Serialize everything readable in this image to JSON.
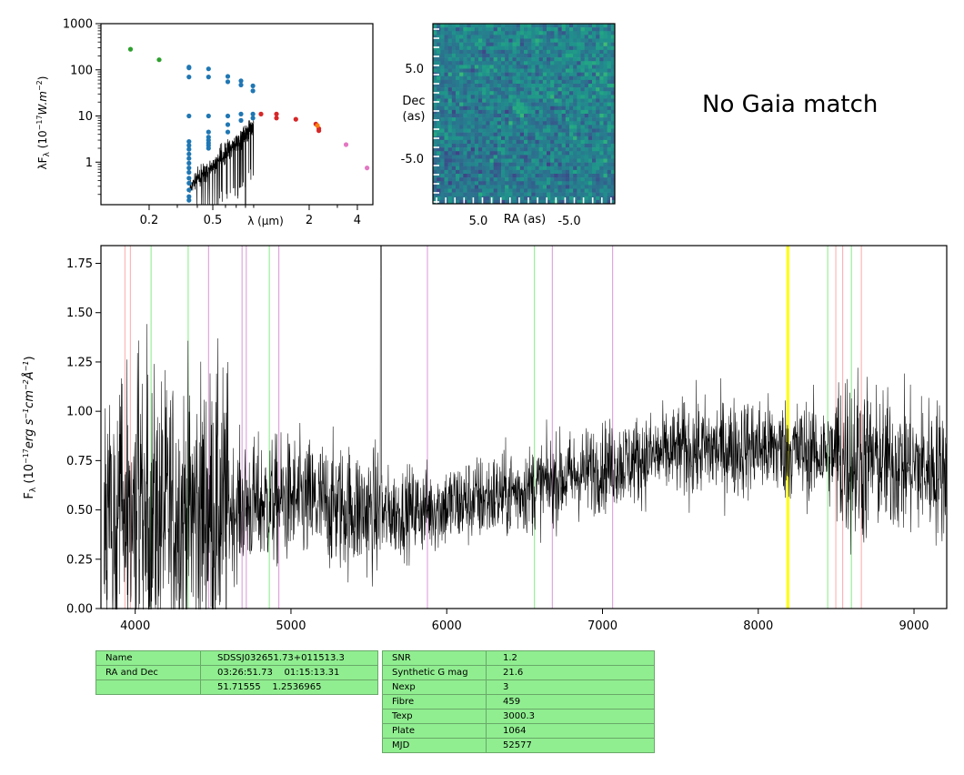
{
  "chart_data": [
    {
      "type": "scatter",
      "xlabel": "λ (μm)",
      "ylabel": "λF_λ (10^-17 W.m^-2)",
      "xscale": "log",
      "yscale": "log",
      "xlim": [
        0.1,
        5.0
      ],
      "ylim": [
        0.12,
        1000
      ],
      "x_ticks": [
        {
          "v": 0.2,
          "label": "0.2"
        },
        {
          "v": 0.5,
          "label": "0.5"
        },
        {
          "v": 2,
          "label": "2"
        },
        {
          "v": 4,
          "label": "4"
        }
      ],
      "y_ticks": [
        {
          "v": 1,
          "label": "1"
        },
        {
          "v": 10,
          "label": "10"
        },
        {
          "v": 100,
          "label": "100"
        },
        {
          "v": 1000,
          "label": "1000"
        }
      ],
      "series": [
        {
          "color": "#2ca02c",
          "points": [
            [
              0.153,
              280
            ],
            [
              0.231,
              165
            ]
          ]
        },
        {
          "color": "#1f77b4",
          "points": [
            [
              0.355,
              115
            ],
            [
              0.355,
              110
            ],
            [
              0.355,
              70
            ],
            [
              0.355,
              10
            ],
            [
              0.355,
              2.8
            ],
            [
              0.355,
              2.3
            ],
            [
              0.355,
              1.9
            ],
            [
              0.355,
              1.5
            ],
            [
              0.355,
              1.2
            ],
            [
              0.355,
              0.95
            ],
            [
              0.355,
              0.75
            ],
            [
              0.355,
              0.6
            ],
            [
              0.355,
              0.45
            ],
            [
              0.355,
              0.35
            ],
            [
              0.355,
              0.25
            ],
            [
              0.355,
              0.18
            ],
            [
              0.355,
              0.15
            ],
            [
              0.47,
              105
            ],
            [
              0.47,
              70
            ],
            [
              0.47,
              10
            ],
            [
              0.47,
              4.5
            ],
            [
              0.47,
              3.5
            ],
            [
              0.47,
              3.0
            ],
            [
              0.47,
              2.6
            ],
            [
              0.47,
              2.3
            ],
            [
              0.47,
              2.0
            ],
            [
              0.62,
              72
            ],
            [
              0.62,
              55
            ],
            [
              0.62,
              10
            ],
            [
              0.62,
              6.5
            ],
            [
              0.62,
              4.5
            ],
            [
              0.75,
              58
            ],
            [
              0.75,
              47
            ],
            [
              0.75,
              11
            ],
            [
              0.75,
              8
            ],
            [
              0.89,
              45
            ],
            [
              0.89,
              35
            ],
            [
              0.89,
              11
            ],
            [
              0.89,
              9
            ]
          ]
        },
        {
          "color": "#d62728",
          "points": [
            [
              1.0,
              11
            ],
            [
              1.25,
              11
            ],
            [
              1.25,
              9
            ],
            [
              1.65,
              8.5
            ],
            [
              2.2,
              6.7
            ],
            [
              2.3,
              5.3
            ],
            [
              2.3,
              4.8
            ]
          ]
        },
        {
          "color": "#ff7f0e",
          "points": [
            [
              2.25,
              6.2
            ]
          ]
        },
        {
          "color": "#e377c2",
          "points": [
            [
              3.4,
              2.4
            ],
            [
              4.6,
              0.75
            ]
          ]
        }
      ],
      "model_line": "black curve from 0.36 μm to 0.9 μm rising from ~0.3 to ~6"
    },
    {
      "type": "heatmap",
      "xlabel": "RA (as)",
      "ylabel": "Dec\n(as)",
      "xlim": [
        10,
        -10
      ],
      "ylim": [
        -10,
        10
      ],
      "x_ticks": [
        {
          "v": 5,
          "label": "5.0"
        },
        {
          "v": -5,
          "label": "-5.0"
        }
      ],
      "y_ticks": [
        {
          "v": 5,
          "label": "5.0"
        },
        {
          "v": -5,
          "label": "-5.0"
        }
      ],
      "grid_size": [
        48,
        48
      ],
      "colormap": "viridis",
      "source": {
        "ra": 0.5,
        "dec": 0.5
      }
    },
    {
      "type": "line",
      "xlabel": "",
      "ylabel": "F_λ (10^-17 erg s^-1 cm^-2 Å^-1)",
      "xlim": [
        3780,
        9210
      ],
      "ylim": [
        0,
        1.84
      ],
      "x_ticks": [
        {
          "v": 4000,
          "label": "4000"
        },
        {
          "v": 5000,
          "label": "5000"
        },
        {
          "v": 6000,
          "label": "6000"
        },
        {
          "v": 7000,
          "label": "7000"
        },
        {
          "v": 8000,
          "label": "8000"
        },
        {
          "v": 9000,
          "label": "9000"
        }
      ],
      "y_ticks": [
        {
          "v": 0,
          "label": "0.00"
        },
        {
          "v": 0.25,
          "label": "0.25"
        },
        {
          "v": 0.5,
          "label": "0.50"
        },
        {
          "v": 0.75,
          "label": "0.75"
        },
        {
          "v": 1.0,
          "label": "1.00"
        },
        {
          "v": 1.25,
          "label": "1.25"
        },
        {
          "v": 1.5,
          "label": "1.50"
        },
        {
          "v": 1.75,
          "label": "1.75"
        }
      ],
      "continuum": [
        [
          3800,
          0.45
        ],
        [
          4500,
          0.5
        ],
        [
          5000,
          0.55
        ],
        [
          5600,
          0.48
        ],
        [
          6000,
          0.52
        ],
        [
          6500,
          0.6
        ],
        [
          7000,
          0.72
        ],
        [
          7500,
          0.8
        ],
        [
          8000,
          0.82
        ],
        [
          8500,
          0.78
        ],
        [
          9000,
          0.72
        ],
        [
          9200,
          0.7
        ]
      ],
      "vlines": [
        {
          "x": 3934,
          "color": "#ffb0b0"
        },
        {
          "x": 3969,
          "color": "#ffb0b0"
        },
        {
          "x": 4102,
          "color": "#90ee90"
        },
        {
          "x": 4340,
          "color": "#90ee90"
        },
        {
          "x": 4471,
          "color": "#dda0dd"
        },
        {
          "x": 4686,
          "color": "#dda0dd"
        },
        {
          "x": 4713,
          "color": "#dda0dd"
        },
        {
          "x": 4861,
          "color": "#90ee90"
        },
        {
          "x": 4922,
          "color": "#dda0dd"
        },
        {
          "x": 5876,
          "color": "#dda0dd"
        },
        {
          "x": 6563,
          "color": "#90ee90"
        },
        {
          "x": 6678,
          "color": "#dda0dd"
        },
        {
          "x": 7065,
          "color": "#dda0dd"
        },
        {
          "x": 8190,
          "color": "#ffff00",
          "width": 3
        },
        {
          "x": 8446,
          "color": "#90ee90"
        },
        {
          "x": 8498,
          "color": "#ffb0b0"
        },
        {
          "x": 8542,
          "color": "#ffb0b0"
        },
        {
          "x": 8598,
          "color": "#90ee90"
        },
        {
          "x": 8662,
          "color": "#ffb0b0"
        }
      ]
    }
  ],
  "no_gaia": "No Gaia match",
  "table_left": [
    {
      "key": "Name",
      "value": "SDSSJ032651.73+011513.3"
    },
    {
      "key": "RA and Dec",
      "value": "03:26:51.73    01:15:13.31"
    },
    {
      "key": "",
      "value": "51.71555    1.2536965"
    }
  ],
  "table_right": [
    {
      "key": "SNR",
      "value": "1.2"
    },
    {
      "key": "Synthetic G mag",
      "value": "21.6"
    },
    {
      "key": "Nexp",
      "value": "3"
    },
    {
      "key": "Fibre",
      "value": "459"
    },
    {
      "key": "Texp",
      "value": "3000.3"
    },
    {
      "key": "Plate",
      "value": "1064"
    },
    {
      "key": "MJD",
      "value": "52577"
    }
  ]
}
